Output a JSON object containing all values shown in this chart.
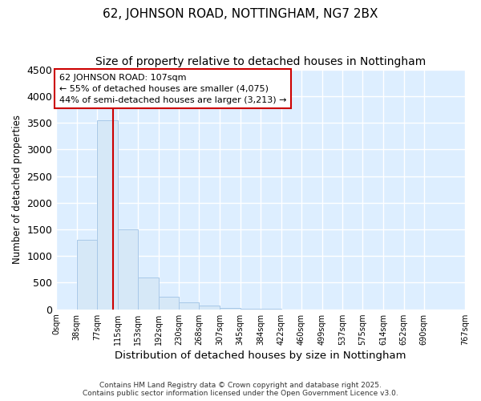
{
  "title_line1": "62, JOHNSON ROAD, NOTTINGHAM, NG7 2BX",
  "title_line2": "Size of property relative to detached houses in Nottingham",
  "xlabel": "Distribution of detached houses by size in Nottingham",
  "ylabel": "Number of detached properties",
  "bar_color": "#d6e8f7",
  "bar_edge_color": "#a8c8e8",
  "bar_values": [
    0,
    1300,
    3550,
    1500,
    600,
    240,
    130,
    70,
    30,
    10,
    5,
    2,
    0,
    0,
    0,
    0,
    0,
    0,
    0
  ],
  "bin_edges": [
    0,
    38,
    77,
    115,
    153,
    192,
    230,
    268,
    307,
    345,
    384,
    422,
    460,
    499,
    537,
    575,
    614,
    652,
    690,
    767
  ],
  "tick_labels": [
    "0sqm",
    "38sqm",
    "77sqm",
    "115sqm",
    "153sqm",
    "192sqm",
    "230sqm",
    "268sqm",
    "307sqm",
    "345sqm",
    "384sqm",
    "422sqm",
    "460sqm",
    "499sqm",
    "537sqm",
    "575sqm",
    "614sqm",
    "652sqm",
    "690sqm",
    "767sqm"
  ],
  "ylim": [
    0,
    4500
  ],
  "yticks": [
    0,
    500,
    1000,
    1500,
    2000,
    2500,
    3000,
    3500,
    4000,
    4500
  ],
  "property_size": 107,
  "vline_color": "#cc0000",
  "annotation_text": "62 JOHNSON ROAD: 107sqm\n← 55% of detached houses are smaller (4,075)\n44% of semi-detached houses are larger (3,213) →",
  "annotation_box_color": "#ffffff",
  "annotation_box_edge": "#cc0000",
  "fig_background_color": "#ffffff",
  "plot_background_color": "#ddeeff",
  "grid_color": "#ffffff",
  "footer_line1": "Contains HM Land Registry data © Crown copyright and database right 2025.",
  "footer_line2": "Contains public sector information licensed under the Open Government Licence v3.0.",
  "title_fontsize": 11,
  "subtitle_fontsize": 10,
  "tick_fontsize": 7,
  "ylabel_fontsize": 8.5,
  "xlabel_fontsize": 9.5,
  "annotation_fontsize": 8
}
